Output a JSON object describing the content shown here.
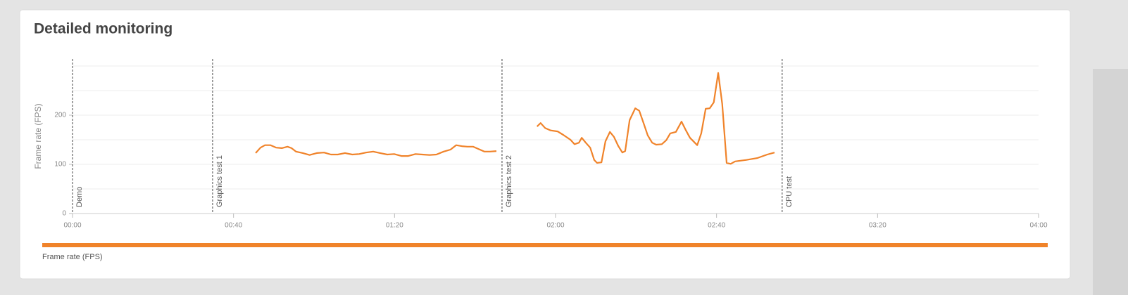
{
  "chart_data": {
    "type": "line",
    "title": "Detailed monitoring",
    "y_label": "Frame rate (FPS)",
    "xlim": [
      0,
      240
    ],
    "xticks": [
      {
        "value": 0,
        "label": "00:00"
      },
      {
        "value": 40,
        "label": "00:40"
      },
      {
        "value": 80,
        "label": "01:20"
      },
      {
        "value": 120,
        "label": "02:00"
      },
      {
        "value": 160,
        "label": "02:40"
      },
      {
        "value": 200,
        "label": "03:20"
      },
      {
        "value": 240,
        "label": "04:00"
      }
    ],
    "ylim": [
      0,
      300
    ],
    "yticks": [
      0,
      100,
      200
    ],
    "grid_lines": [
      50,
      100,
      150,
      200,
      250,
      300
    ],
    "markers": [
      {
        "label": "Demo",
        "x": 0
      },
      {
        "label": "Graphics test 1",
        "x": 34.8
      },
      {
        "label": "Graphics test 2",
        "x": 106.7
      },
      {
        "label": "CPU test",
        "x": 176.3
      }
    ],
    "x": [
      45.5,
      46.7,
      47.8,
      49.2,
      50.6,
      52.0,
      53.4,
      54.4,
      55.5,
      57.2,
      58.9,
      60.7,
      62.5,
      64.2,
      65.9,
      67.7,
      69.5,
      71.2,
      72.9,
      74.7,
      76.4,
      78.2,
      79.9,
      81.7,
      83.4,
      85.2,
      86.9,
      88.7,
      90.4,
      92.2,
      93.9,
      95.3,
      96.7,
      98.1,
      99.5,
      100.9,
      102.3,
      103.7,
      105.3,
      110,
      115.4,
      116.3,
      117.4,
      118.8,
      120.5,
      121.9,
      123.7,
      124.7,
      125.8,
      126.5,
      127.5,
      128.6,
      129.6,
      130.3,
      131.4,
      132.4,
      133.5,
      134.5,
      135.6,
      136.6,
      137.3,
      138.4,
      139.8,
      140.8,
      141.9,
      142.9,
      144.0,
      145.0,
      146.4,
      147.5,
      148.5,
      149.9,
      151.3,
      152.4,
      153.4,
      155.2,
      156.2,
      157.3,
      158.3,
      159.3,
      160.4,
      161.4,
      162.5,
      163.5,
      164.6,
      167.4,
      170.2,
      172.6,
      174.4
    ],
    "series": [
      {
        "name": "Frame rate (FPS)",
        "color": "#f0832a",
        "values": [
          123,
          134,
          139,
          139,
          134,
          133,
          136,
          133,
          126,
          123,
          119,
          123,
          124,
          120,
          120,
          123,
          120,
          121,
          124,
          126,
          123,
          120,
          121,
          117,
          117,
          121,
          120,
          119,
          120,
          126,
          130,
          139,
          137,
          136,
          136,
          131,
          126,
          126,
          127,
          null,
          177,
          184,
          174,
          169,
          167,
          160,
          150,
          141,
          144,
          154,
          144,
          134,
          109,
          103,
          104,
          147,
          166,
          156,
          137,
          124,
          127,
          190,
          214,
          209,
          183,
          159,
          144,
          140,
          141,
          149,
          163,
          166,
          187,
          169,
          154,
          139,
          163,
          213,
          214,
          226,
          286,
          223,
          103,
          101,
          106,
          109,
          113,
          120,
          124
        ]
      }
    ]
  }
}
